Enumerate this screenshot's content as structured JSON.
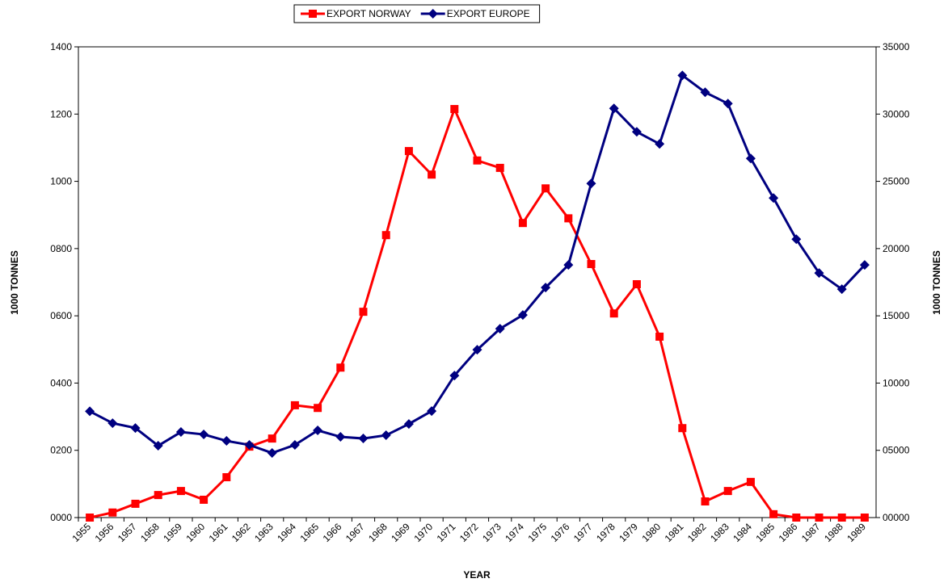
{
  "chart_data": {
    "type": "line",
    "categories": [
      "1955",
      "1956",
      "1957",
      "1958",
      "1959",
      "1960",
      "1961",
      "1962",
      "1963",
      "1964",
      "1965",
      "1966",
      "1967",
      "1968",
      "1969",
      "1970",
      "1971",
      "1972",
      "1973",
      "1974",
      "1975",
      "1976",
      "1977",
      "1978",
      "1979",
      "1980",
      "1981",
      "1982",
      "1983",
      "1984",
      "1985",
      "1986",
      "1987",
      "1988",
      "1989"
    ],
    "series": [
      {
        "name": "EXPORT NORWAY",
        "color": "#ff0000",
        "marker": "square",
        "values": [
          0,
          15,
          41,
          67,
          79,
          53,
          120,
          211,
          235,
          334,
          326,
          446,
          612,
          840,
          1090,
          1020,
          1215,
          1062,
          1040,
          876,
          979,
          890,
          754,
          607,
          694,
          538,
          266,
          48,
          79,
          106,
          10,
          0,
          0,
          0,
          0
        ]
      },
      {
        "name": "EXPORT EUROPE",
        "color": "#000080",
        "marker": "diamond",
        "axis": "y2",
        "values": [
          7900,
          7020,
          6660,
          5340,
          6360,
          6180,
          5700,
          5400,
          4800,
          5400,
          6480,
          6000,
          5880,
          6120,
          6960,
          7920,
          10560,
          12480,
          14040,
          15060,
          17100,
          18780,
          24840,
          30420,
          28680,
          27780,
          32880,
          31620,
          30780,
          26700,
          23760,
          20700,
          18180,
          16980,
          18780
        ]
      }
    ],
    "xlabel": "YEAR",
    "ylabel": "1000 TONNES",
    "y2label": "1000 TONNES",
    "ylim": [
      0,
      1400
    ],
    "yticks": [
      {
        "value": 0,
        "label": "0000"
      },
      {
        "value": 200,
        "label": "0200"
      },
      {
        "value": 400,
        "label": "0400"
      },
      {
        "value": 600,
        "label": "0600"
      },
      {
        "value": 800,
        "label": "0800"
      },
      1000,
      1200,
      1400
    ],
    "y2lim": [
      0,
      35000
    ],
    "y2ticks": [
      {
        "value": 0,
        "label": "00000"
      },
      {
        "value": 5000,
        "label": "05000"
      },
      10000,
      15000,
      20000,
      25000,
      30000,
      35000
    ],
    "legend": "top",
    "grid": false
  }
}
